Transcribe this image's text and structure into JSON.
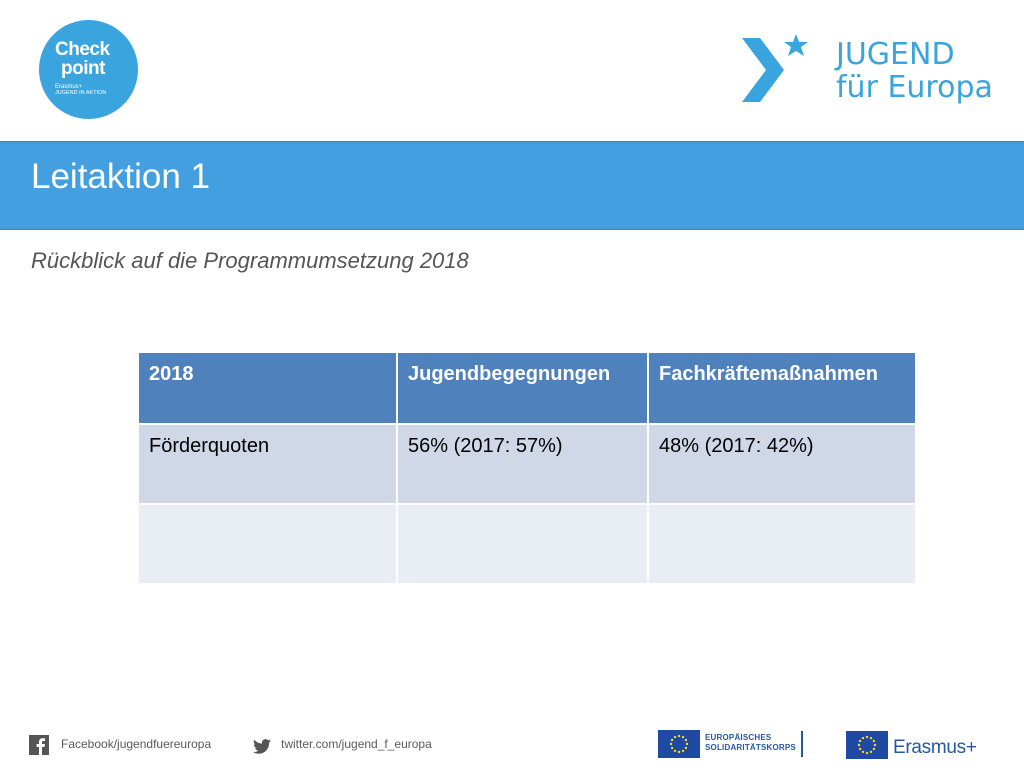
{
  "logos": {
    "checkpoint": {
      "line1": "Check",
      "line2": "point",
      "line3": "Erasmus+",
      "line4": "JUGEND IN AKTION",
      "color": "#39a4dd"
    },
    "jugend_fuer_europa": {
      "line1": "JUGEND",
      "line2": "für Europa",
      "color": "#39a4dd"
    }
  },
  "title": "Leitaktion 1",
  "subtitle": "Rückblick auf die Programmumsetzung 2018",
  "table": {
    "headers": [
      "2018",
      "Jugendbegegnungen",
      "Fachkräftemaßnahmen"
    ],
    "rows": [
      [
        "Förderquoten",
        "56% (2017: 57%)",
        "48% (2017: 42%)"
      ],
      [
        "",
        "",
        ""
      ]
    ]
  },
  "footer": {
    "facebook": "Facebook/jugendfuereuropa",
    "twitter": "twitter.com/jugend_f_europa",
    "esk_line1": "EUROPÄISCHES",
    "esk_line2": "SOLIDARITÄTSKORPS",
    "erasmus": "Erasmus+"
  },
  "colors": {
    "title_bar": "#439fe0",
    "table_header": "#4f81bd",
    "row_odd": "#d0d8e8",
    "row_even": "#e9edf4"
  }
}
